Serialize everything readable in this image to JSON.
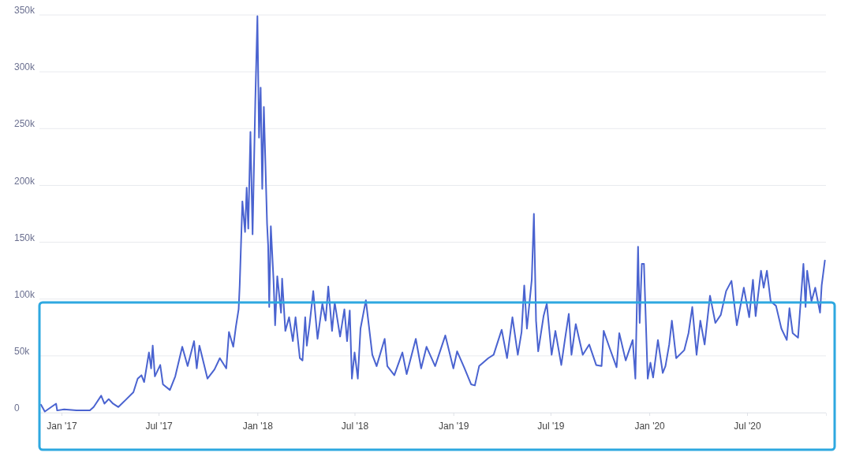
{
  "chart_data": {
    "type": "line",
    "x": [
      "2016-11-24",
      "2016-12-01",
      "2016-12-22",
      "2016-12-24",
      "2017-01-06",
      "2017-01-29",
      "2017-02-23",
      "2017-03-02",
      "2017-03-16",
      "2017-03-22",
      "2017-03-30",
      "2017-04-07",
      "2017-04-17",
      "2017-04-30",
      "2017-05-15",
      "2017-05-23",
      "2017-05-30",
      "2017-06-04",
      "2017-06-13",
      "2017-06-17",
      "2017-06-20",
      "2017-06-24",
      "2017-07-04",
      "2017-07-09",
      "2017-07-22",
      "2017-08-01",
      "2017-08-14",
      "2017-08-24",
      "2017-09-05",
      "2017-09-10",
      "2017-09-15",
      "2017-09-30",
      "2017-10-13",
      "2017-10-23",
      "2017-11-04",
      "2017-11-09",
      "2017-11-17",
      "2017-11-22",
      "2017-11-27",
      "2017-11-29",
      "2017-12-04",
      "2017-12-09",
      "2017-12-12",
      "2017-12-15",
      "2017-12-19",
      "2017-12-23",
      "2017-12-28",
      "2018-01-01",
      "2018-01-04",
      "2018-01-07",
      "2018-01-10",
      "2018-01-13",
      "2018-01-19",
      "2018-01-21",
      "2018-01-23",
      "2018-01-26",
      "2018-01-31",
      "2018-02-03",
      "2018-02-07",
      "2018-02-14",
      "2018-02-16",
      "2018-02-22",
      "2018-03-01",
      "2018-03-08",
      "2018-03-13",
      "2018-03-21",
      "2018-03-26",
      "2018-03-31",
      "2018-04-03",
      "2018-04-08",
      "2018-04-15",
      "2018-04-23",
      "2018-05-02",
      "2018-05-08",
      "2018-05-13",
      "2018-05-20",
      "2018-05-25",
      "2018-06-04",
      "2018-06-12",
      "2018-06-17",
      "2018-06-22",
      "2018-06-26",
      "2018-07-01",
      "2018-07-07",
      "2018-07-12",
      "2018-07-22",
      "2018-08-03",
      "2018-08-11",
      "2018-08-26",
      "2018-08-31",
      "2018-09-13",
      "2018-09-28",
      "2018-10-06",
      "2018-10-23",
      "2018-11-02",
      "2018-11-12",
      "2018-11-28",
      "2018-12-17",
      "2019-01-01",
      "2019-01-08",
      "2019-01-21",
      "2019-02-03",
      "2019-02-10",
      "2019-02-18",
      "2019-03-07",
      "2019-03-17",
      "2019-04-01",
      "2019-04-11",
      "2019-04-21",
      "2019-05-01",
      "2019-05-08",
      "2019-05-13",
      "2019-05-18",
      "2019-05-27",
      "2019-05-31",
      "2019-06-04",
      "2019-06-08",
      "2019-06-18",
      "2019-06-24",
      "2019-07-03",
      "2019-07-10",
      "2019-07-21",
      "2019-07-28",
      "2019-08-04",
      "2019-08-09",
      "2019-08-17",
      "2019-08-30",
      "2019-09-11",
      "2019-09-24",
      "2019-10-04",
      "2019-10-08",
      "2019-10-19",
      "2019-11-01",
      "2019-11-06",
      "2019-11-18",
      "2019-12-01",
      "2019-12-06",
      "2019-12-11",
      "2019-12-14",
      "2019-12-18",
      "2019-12-22",
      "2019-12-29",
      "2020-01-03",
      "2020-01-08",
      "2020-01-17",
      "2020-01-26",
      "2020-01-31",
      "2020-02-07",
      "2020-02-12",
      "2020-02-20",
      "2020-03-06",
      "2020-03-14",
      "2020-03-21",
      "2020-03-29",
      "2020-04-05",
      "2020-04-13",
      "2020-04-23",
      "2020-05-03",
      "2020-05-13",
      "2020-05-23",
      "2020-06-02",
      "2020-06-12",
      "2020-06-25",
      "2020-07-05",
      "2020-07-12",
      "2020-07-17",
      "2020-07-27",
      "2020-08-01",
      "2020-08-07",
      "2020-08-14",
      "2020-08-24",
      "2020-09-03",
      "2020-09-13",
      "2020-09-18",
      "2020-09-24",
      "2020-10-04",
      "2020-10-14",
      "2020-10-18",
      "2020-10-21",
      "2020-10-29",
      "2020-11-05",
      "2020-11-14",
      "2020-11-17",
      "2020-11-23"
    ],
    "series": [
      {
        "color": "#4a63d0",
        "values": [
          7000,
          1000,
          8000,
          2000,
          3000,
          2000,
          2000,
          5000,
          15000,
          8000,
          12000,
          8000,
          5000,
          11000,
          18000,
          30000,
          33000,
          27000,
          53000,
          39000,
          59000,
          32000,
          42000,
          25000,
          20000,
          32000,
          58000,
          41000,
          63000,
          39000,
          59000,
          30000,
          38000,
          48000,
          39000,
          71000,
          58000,
          76000,
          91000,
          112000,
          186000,
          159000,
          198000,
          162000,
          247000,
          157000,
          273000,
          349000,
          242000,
          286000,
          197000,
          269000,
          166000,
          147000,
          93000,
          164000,
          117000,
          77000,
          120000,
          88000,
          118000,
          72000,
          84000,
          63000,
          84000,
          48000,
          46000,
          84000,
          59000,
          77000,
          107000,
          65000,
          96000,
          81000,
          111000,
          72000,
          97000,
          67000,
          91000,
          63000,
          90000,
          30000,
          53000,
          30000,
          74000,
          99000,
          51000,
          41000,
          65000,
          41000,
          33000,
          53000,
          34000,
          65000,
          39000,
          58000,
          41000,
          68000,
          39000,
          54000,
          40000,
          25000,
          24000,
          41000,
          48000,
          51000,
          73000,
          48000,
          84000,
          51000,
          71000,
          112000,
          74000,
          117000,
          175000,
          81000,
          54000,
          85000,
          96000,
          51000,
          72000,
          42000,
          65000,
          87000,
          51000,
          78000,
          51000,
          60000,
          42000,
          41000,
          72000,
          57000,
          40000,
          70000,
          46000,
          64000,
          30000,
          146000,
          79000,
          131000,
          131000,
          30000,
          44000,
          31000,
          64000,
          35000,
          41000,
          60000,
          81000,
          48000,
          55000,
          70000,
          93000,
          51000,
          81000,
          60000,
          103000,
          79000,
          86000,
          107000,
          116000,
          77000,
          110000,
          84000,
          117000,
          85000,
          125000,
          110000,
          125000,
          98000,
          94000,
          74000,
          64000,
          92000,
          70000,
          66000,
          131000,
          93000,
          125000,
          98000,
          110000,
          88000,
          112000,
          134000
        ]
      }
    ],
    "xlim": [
      "2016-11-21",
      "2020-11-25"
    ],
    "xticks": [
      {
        "value": "2017-01-01",
        "label": "Jan '17"
      },
      {
        "value": "2017-07-01",
        "label": "Jul '17"
      },
      {
        "value": "2018-01-01",
        "label": "Jan '18"
      },
      {
        "value": "2018-07-01",
        "label": "Jul '18"
      },
      {
        "value": "2019-01-01",
        "label": "Jan '19"
      },
      {
        "value": "2019-07-01",
        "label": "Jul '19"
      },
      {
        "value": "2020-01-01",
        "label": "Jan '20"
      },
      {
        "value": "2020-07-01",
        "label": "Jul '20"
      }
    ],
    "ylim": [
      0,
      350000
    ],
    "yticks": [
      {
        "value": 0,
        "label": "0"
      },
      {
        "value": 50000,
        "label": "50k"
      },
      {
        "value": 100000,
        "label": "100k"
      },
      {
        "value": 150000,
        "label": "150k"
      },
      {
        "value": 200000,
        "label": "200k"
      },
      {
        "value": 250000,
        "label": "250k"
      },
      {
        "value": 300000,
        "label": "300k"
      },
      {
        "value": 350000,
        "label": "350k"
      }
    ],
    "grid": "y",
    "legend": false,
    "marker": "none",
    "line_style": "solid"
  }
}
